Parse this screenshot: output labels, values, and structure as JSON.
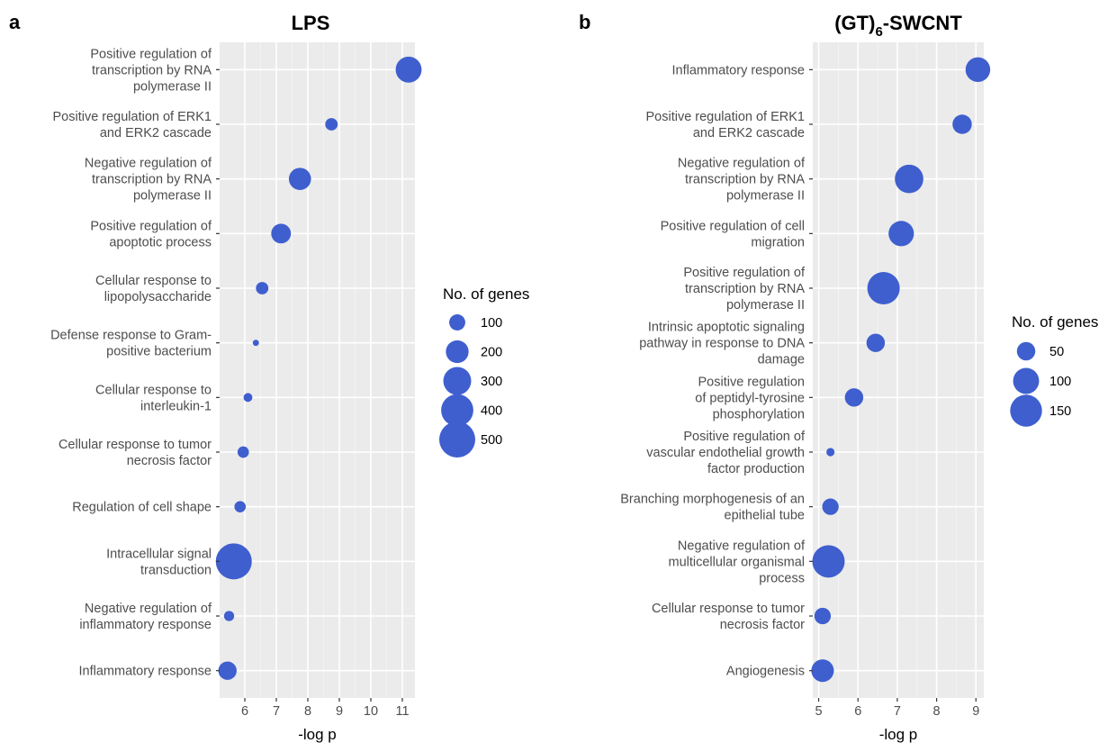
{
  "chart_data": [
    {
      "panel_label": "a",
      "type": "scatter",
      "title": "LPS",
      "xlabel": "-log p",
      "ylabel": "",
      "xlim": [
        5.2,
        11.4
      ],
      "x_ticks": [
        6,
        7,
        8,
        9,
        10,
        11
      ],
      "grid": true,
      "marker_color": "#3F5FCF",
      "legend": {
        "title": "No. of genes",
        "placement": "right",
        "sizes": [
          100,
          200,
          300,
          400,
          500
        ]
      },
      "points": [
        {
          "label": "Positive regulation of\ntranscription by RNA\npolymerase II",
          "x": 11.2,
          "size": 260
        },
        {
          "label": "Positive regulation of ERK1\nand ERK2 cascade",
          "x": 8.75,
          "size": 60
        },
        {
          "label": "Negative regulation of\ntranscription by RNA\npolymerase II",
          "x": 7.75,
          "size": 190
        },
        {
          "label": "Positive regulation of\napoptotic process",
          "x": 7.15,
          "size": 150
        },
        {
          "label": "Cellular response to\nlipopolysaccharide",
          "x": 6.55,
          "size": 60
        },
        {
          "label": "Defense response to Gram-\npositive bacterium",
          "x": 6.35,
          "size": 15
        },
        {
          "label": "Cellular response to\ninterleukin-1",
          "x": 6.1,
          "size": 30
        },
        {
          "label": "Cellular response to tumor\nnecrosis factor",
          "x": 5.95,
          "size": 50
        },
        {
          "label": "Regulation of cell shape",
          "x": 5.85,
          "size": 50
        },
        {
          "label": "Intracellular signal\ntransduction",
          "x": 5.65,
          "size": 500
        },
        {
          "label": "Negative regulation of\ninflammatory response",
          "x": 5.5,
          "size": 40
        },
        {
          "label": "Inflammatory response",
          "x": 5.45,
          "size": 130
        }
      ]
    },
    {
      "panel_label": "b",
      "type": "scatter",
      "title": "(GT)",
      "title_subscript": "6",
      "title_suffix": "-SWCNT",
      "xlabel": "-log p",
      "ylabel": "",
      "xlim": [
        4.85,
        9.2
      ],
      "x_ticks": [
        5,
        6,
        7,
        8,
        9
      ],
      "grid": true,
      "marker_color": "#3F5FCF",
      "legend": {
        "title": "No. of genes",
        "placement": "right",
        "sizes": [
          50,
          100,
          150
        ]
      },
      "points": [
        {
          "label": "Inflammatory response",
          "x": 9.05,
          "size": 90
        },
        {
          "label": "Positive regulation of ERK1\nand ERK2 cascade",
          "x": 8.65,
          "size": 55
        },
        {
          "label": "Negative regulation of\ntranscription by RNA\npolymerase II",
          "x": 7.3,
          "size": 120
        },
        {
          "label": "Positive regulation of cell\nmigration",
          "x": 7.1,
          "size": 95
        },
        {
          "label": "Positive regulation of\ntranscription by RNA\npolymerase II",
          "x": 6.65,
          "size": 155
        },
        {
          "label": "Intrinsic apoptotic signaling\npathway in response to DNA\ndamage",
          "x": 6.45,
          "size": 50
        },
        {
          "label": "Positive regulation\nof peptidyl-tyrosine\nphosphorylation",
          "x": 5.9,
          "size": 50
        },
        {
          "label": "Positive regulation of\nvascular endothelial growth\nfactor production",
          "x": 5.3,
          "size": 10
        },
        {
          "label": "Branching morphogenesis of an\nepithelial tube",
          "x": 5.3,
          "size": 40
        },
        {
          "label": "Negative regulation of\nmulticellular organismal\nprocess",
          "x": 5.25,
          "size": 155
        },
        {
          "label": "Cellular response to tumor\nnecrosis factor",
          "x": 5.1,
          "size": 40
        },
        {
          "label": "Angiogenesis",
          "x": 5.1,
          "size": 75
        }
      ]
    }
  ]
}
